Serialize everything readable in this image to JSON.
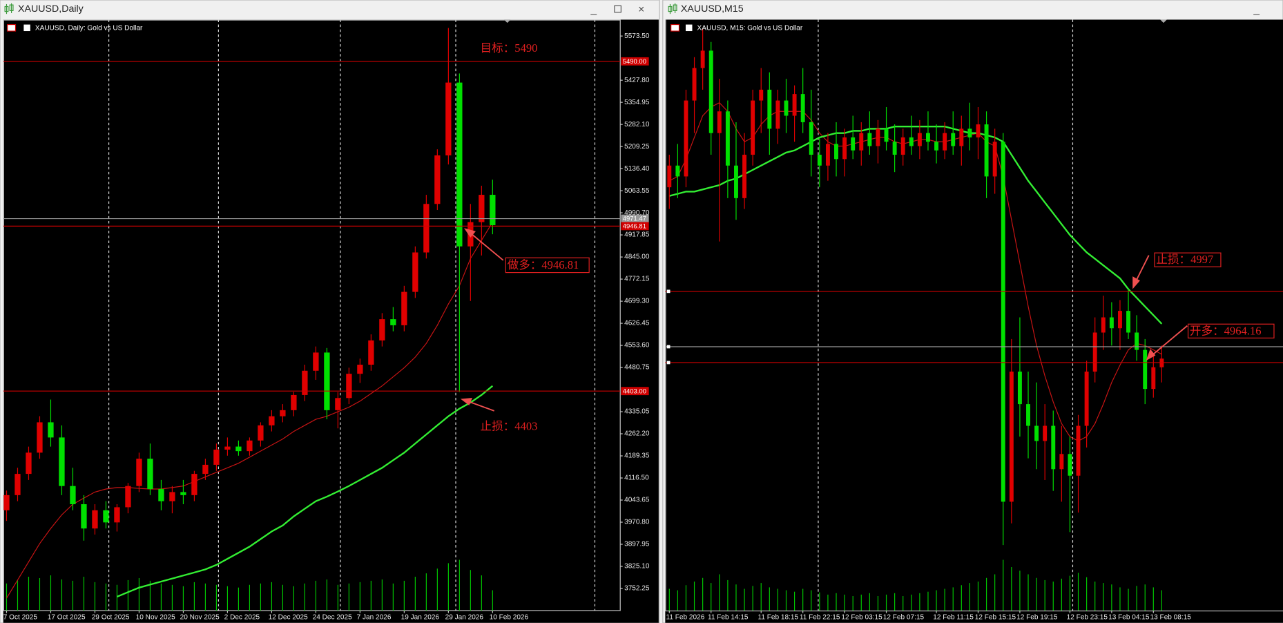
{
  "windows": [
    {
      "title": "XAUUSD,Daily",
      "chart_data": {
        "type": "candlestick",
        "title": "XAUUSD, Daily:  Gold vs US Dollar",
        "categories": [
          "7 Oct 2025",
          null,
          null,
          null,
          "17 Oct 2025",
          null,
          null,
          null,
          "29 Oct 2025",
          null,
          null,
          null,
          "10 Nov 2025",
          null,
          null,
          null,
          "20 Nov 2025",
          null,
          null,
          null,
          "2 Dec 2025",
          null,
          null,
          null,
          "12 Dec 2025",
          null,
          null,
          null,
          "24 Dec 2025",
          null,
          null,
          null,
          "7 Jan 2026",
          null,
          null,
          null,
          "19 Jan 2026",
          null,
          null,
          null,
          "29 Jan 2026",
          null,
          null,
          null,
          "10 Feb 2026"
        ],
        "open": [
          4010,
          4060,
          4130,
          4200,
          4300,
          4250,
          4090,
          4030,
          3950,
          4010,
          3970,
          4020,
          4090,
          4180,
          4080,
          4040,
          4070,
          4060,
          4130,
          4160,
          4210,
          4220,
          4205,
          4240,
          4290,
          4320,
          4340,
          4390,
          4470,
          4530,
          4340,
          4380,
          4460,
          4490,
          4570,
          4640,
          4620,
          4730,
          4860,
          5020,
          5180,
          5420,
          4880,
          4960,
          5050
        ],
        "high": [
          4075,
          4150,
          4220,
          4320,
          4375,
          4290,
          4150,
          4060,
          4030,
          4040,
          4030,
          4100,
          4200,
          4230,
          4110,
          4090,
          4110,
          4140,
          4180,
          4230,
          4250,
          4240,
          4250,
          4300,
          4340,
          4360,
          4400,
          4490,
          4550,
          4545,
          4400,
          4480,
          4510,
          4590,
          4660,
          4680,
          4750,
          4880,
          5050,
          5200,
          5600,
          5450,
          5020,
          5080,
          5100
        ],
        "low": [
          3975,
          4040,
          4110,
          4180,
          4220,
          4060,
          4010,
          3910,
          3930,
          3950,
          3940,
          4000,
          4070,
          4060,
          4010,
          4000,
          4030,
          4040,
          4110,
          4140,
          4190,
          4190,
          4190,
          4220,
          4270,
          4300,
          4320,
          4370,
          4440,
          4310,
          4280,
          4360,
          4430,
          4470,
          4550,
          4600,
          4600,
          4710,
          4840,
          5000,
          5150,
          4400,
          4700,
          4850,
          4920
        ],
        "close": [
          4060,
          4130,
          4200,
          4300,
          4250,
          4090,
          4030,
          3950,
          4010,
          3970,
          4020,
          4090,
          4180,
          4080,
          4040,
          4070,
          4060,
          4130,
          4160,
          4210,
          4220,
          4205,
          4240,
          4290,
          4320,
          4340,
          4390,
          4470,
          4530,
          4340,
          4380,
          4460,
          4490,
          4570,
          4640,
          4620,
          4730,
          4860,
          5020,
          5180,
          5420,
          4880,
          4960,
          5050,
          4950
        ],
        "volume": [
          40,
          45,
          50,
          48,
          52,
          46,
          44,
          50,
          42,
          40,
          38,
          45,
          48,
          44,
          40,
          38,
          36,
          42,
          40,
          38,
          36,
          34,
          38,
          40,
          42,
          38,
          36,
          40,
          44,
          46,
          38,
          40,
          42,
          44,
          46,
          40,
          44,
          50,
          55,
          62,
          70,
          75,
          60,
          52,
          30
        ],
        "ma_fast": [
          3720,
          3780,
          3840,
          3900,
          3950,
          3995,
          4030,
          4050,
          4070,
          4080,
          4085,
          4085,
          4082,
          4080,
          4080,
          4085,
          4090,
          4105,
          4120,
          4135,
          4150,
          4165,
          4185,
          4205,
          4225,
          4245,
          4270,
          4290,
          4310,
          4320,
          4335,
          4350,
          4370,
          4395,
          4420,
          4450,
          4480,
          4515,
          4560,
          4620,
          4690,
          4750,
          4840,
          4900,
          4960
        ],
        "ma_slow": [
          null,
          null,
          null,
          null,
          null,
          null,
          null,
          null,
          null,
          null,
          3725,
          3740,
          3755,
          3765,
          3775,
          3785,
          3795,
          3805,
          3815,
          3830,
          3850,
          3870,
          3890,
          3915,
          3940,
          3960,
          3990,
          4015,
          4040,
          4055,
          4072,
          4090,
          4110,
          4130,
          4150,
          4175,
          4200,
          4230,
          4260,
          4290,
          4320,
          4345,
          4365,
          4390,
          4420
        ],
        "up_color": "#e00000",
        "down_color": "#00e000",
        "volume_color": "#00c800",
        "ma_fast_color": "#c81414",
        "ma_slow_color": "#33ee33",
        "ylim": [
          3679.4,
          5627.5
        ],
        "yticks": [
          {
            "value": 5573.5,
            "label": "5573.50"
          },
          {
            "value": 5427.8,
            "label": "5427.80"
          },
          {
            "value": 5354.95,
            "label": "5354.95"
          },
          {
            "value": 5282.1,
            "label": "5282.10"
          },
          {
            "value": 5209.25,
            "label": "5209.25"
          },
          {
            "value": 5136.4,
            "label": "5136.40"
          },
          {
            "value": 5063.55,
            "label": "5063.55"
          },
          {
            "value": 4990.7,
            "label": "4990.70"
          },
          {
            "value": 4917.85,
            "label": "4917.85"
          },
          {
            "value": 4845,
            "label": "4845.00"
          },
          {
            "value": 4772.15,
            "label": "4772.15"
          },
          {
            "value": 4699.3,
            "label": "4699.30"
          },
          {
            "value": 4626.45,
            "label": "4626.45"
          },
          {
            "value": 4553.6,
            "label": "4553.60"
          },
          {
            "value": 4480.75,
            "label": "4480.75"
          },
          {
            "value": 4335.05,
            "label": "4335.05"
          },
          {
            "value": 4262.2,
            "label": "4262.20"
          },
          {
            "value": 4189.35,
            "label": "4189.35"
          },
          {
            "value": 4116.5,
            "label": "4116.50"
          },
          {
            "value": 4043.65,
            "label": "4043.65"
          },
          {
            "value": 3970.8,
            "label": "3970.80"
          },
          {
            "value": 3897.95,
            "label": "3897.95"
          },
          {
            "value": 3825.1,
            "label": "3825.10"
          },
          {
            "value": 3752.25,
            "label": "3752.25"
          }
        ],
        "levels": [
          {
            "value": 5490,
            "label": "5490.00",
            "color": "#d00000"
          },
          {
            "value": 4971.47,
            "label": "4971.47",
            "color": "#9a9a9a"
          },
          {
            "value": 4946.81,
            "label": "4946.81",
            "color": "#d00000"
          },
          {
            "value": 4403,
            "label": "4403.00",
            "color": "#d00000"
          }
        ],
        "annotations": [
          "目标：5490",
          "做多：4946.81",
          "止损：4403"
        ]
      }
    },
    {
      "title": "XAUUSD,M15",
      "chart_data": {
        "type": "candlestick",
        "title": "XAUUSD, M15:  Gold vs US Dollar",
        "categories": [
          "11 Feb 2026",
          null,
          null,
          null,
          null,
          "11 Feb 14:15",
          null,
          null,
          null,
          null,
          null,
          "11 Feb 18:15",
          null,
          null,
          null,
          null,
          "11 Feb 22:15",
          null,
          null,
          null,
          null,
          "12 Feb 03:15",
          null,
          null,
          null,
          null,
          "12 Feb 07:15",
          null,
          null,
          null,
          null,
          null,
          "12 Feb 11:15",
          null,
          null,
          null,
          null,
          "12 Feb 15:15",
          null,
          null,
          null,
          null,
          "12 Feb 19:15",
          null,
          null,
          null,
          null,
          null,
          "12 Feb 23:15",
          null,
          null,
          null,
          null,
          "13 Feb 04:15",
          null,
          null,
          null,
          null,
          "13 Feb 08:15",
          null
        ],
        "open": [
          5045,
          5055,
          5050,
          5085,
          5100,
          5108,
          5070,
          5080,
          5055,
          5040,
          5060,
          5085,
          5090,
          5072,
          5085,
          5078,
          5088,
          5075,
          5060,
          5055,
          5065,
          5058,
          5068,
          5062,
          5070,
          5064,
          5072,
          5066,
          5060,
          5068,
          5064,
          5070,
          5066,
          5062,
          5070,
          5064,
          5072,
          5068,
          5074,
          5050,
          5066,
          4900,
          4960,
          4945,
          4935,
          4928,
          4935,
          4915,
          4922,
          4912,
          4935,
          4960,
          4978,
          4985,
          4980,
          4988,
          4978,
          4970,
          4952,
          4962
        ],
        "high": [
          5060,
          5065,
          5090,
          5105,
          5118,
          5112,
          5095,
          5085,
          5075,
          5070,
          5090,
          5100,
          5098,
          5090,
          5095,
          5092,
          5100,
          5090,
          5068,
          5070,
          5075,
          5072,
          5078,
          5075,
          5080,
          5076,
          5082,
          5074,
          5072,
          5078,
          5076,
          5080,
          5074,
          5075,
          5080,
          5078,
          5084,
          5082,
          5080,
          5072,
          5070,
          4975,
          4985,
          4960,
          4955,
          4945,
          4942,
          4935,
          4930,
          4940,
          4965,
          4985,
          4995,
          4992,
          4993,
          4998,
          4986,
          4975,
          4968,
          4972
        ],
        "low": [
          5035,
          5040,
          5045,
          5070,
          5090,
          5060,
          5020,
          5040,
          5030,
          5035,
          5055,
          5070,
          5060,
          5065,
          5070,
          5066,
          5070,
          5050,
          5045,
          5048,
          5050,
          5050,
          5058,
          5055,
          5060,
          5056,
          5062,
          5052,
          5055,
          5060,
          5058,
          5062,
          5056,
          5058,
          5060,
          5055,
          5062,
          5058,
          5040,
          5042,
          4880,
          4890,
          4930,
          4920,
          4915,
          4910,
          4905,
          4900,
          4886,
          4895,
          4925,
          4955,
          4970,
          4972,
          4970,
          4975,
          4965,
          4945,
          4948,
          4955
        ],
        "close": [
          5055,
          5050,
          5085,
          5100,
          5108,
          5070,
          5080,
          5055,
          5040,
          5060,
          5085,
          5090,
          5072,
          5085,
          5078,
          5088,
          5075,
          5060,
          5055,
          5065,
          5058,
          5068,
          5062,
          5070,
          5064,
          5072,
          5066,
          5060,
          5068,
          5064,
          5070,
          5066,
          5062,
          5070,
          5064,
          5072,
          5068,
          5074,
          5050,
          5066,
          4900,
          4960,
          4945,
          4935,
          4928,
          4935,
          4915,
          4922,
          4912,
          4935,
          4960,
          4978,
          4985,
          4980,
          4988,
          4978,
          4970,
          4952,
          4962,
          4966
        ],
        "volume": [
          30,
          28,
          35,
          40,
          45,
          38,
          50,
          42,
          36,
          30,
          34,
          38,
          32,
          30,
          28,
          26,
          30,
          28,
          25,
          22,
          24,
          22,
          20,
          22,
          24,
          20,
          22,
          24,
          20,
          22,
          24,
          26,
          28,
          30,
          32,
          35,
          38,
          40,
          45,
          50,
          70,
          60,
          55,
          50,
          45,
          42,
          40,
          44,
          48,
          52,
          46,
          40,
          38,
          36,
          32,
          30,
          34,
          36,
          32,
          28
        ],
        "ma_fast": [
          5048,
          5050,
          5058,
          5068,
          5078,
          5082,
          5084,
          5080,
          5072,
          5066,
          5068,
          5074,
          5078,
          5080,
          5080,
          5080,
          5080,
          5076,
          5070,
          5066,
          5064,
          5064,
          5065,
          5066,
          5067,
          5068,
          5068,
          5066,
          5065,
          5066,
          5067,
          5067,
          5066,
          5066,
          5067,
          5068,
          5069,
          5070,
          5066,
          5064,
          5050,
          5030,
          5010,
          4990,
          4972,
          4958,
          4946,
          4936,
          4930,
          4928,
          4930,
          4936,
          4945,
          4955,
          4963,
          4970,
          4973,
          4972,
          4970,
          4968
        ],
        "ma_slow": [
          5041,
          5042,
          5043,
          5043,
          5044,
          5045,
          5046,
          5048,
          5049,
          5051,
          5053,
          5055,
          5057,
          5059,
          5061,
          5062,
          5064,
          5066,
          5068,
          5069,
          5070,
          5070,
          5071,
          5071,
          5072,
          5072,
          5072,
          5073,
          5073,
          5073,
          5073,
          5073,
          5073,
          5073,
          5072,
          5071,
          5070,
          5070,
          5069,
          5068,
          5066,
          5060,
          5054,
          5048,
          5043,
          5038,
          5033,
          5028,
          5023,
          5019,
          5015,
          5012,
          5009,
          5006,
          5003,
          4998,
          4994,
          4990,
          4986,
          4982
        ],
        "up_color": "#e00000",
        "down_color": "#00e000",
        "volume_color": "#00c800",
        "ma_fast_color": "#c81414",
        "ma_slow_color": "#33ee33",
        "ylim": [
          4849.8,
          5122.3
        ],
        "levels": [
          {
            "value": 4997,
            "color": "#d00000"
          },
          {
            "value": 4971.47,
            "color": "#9a9a9a"
          },
          {
            "value": 4964.16,
            "color": "#d00000"
          }
        ],
        "annotations": [
          "止损：4997",
          "开多：4964.16"
        ]
      }
    }
  ]
}
